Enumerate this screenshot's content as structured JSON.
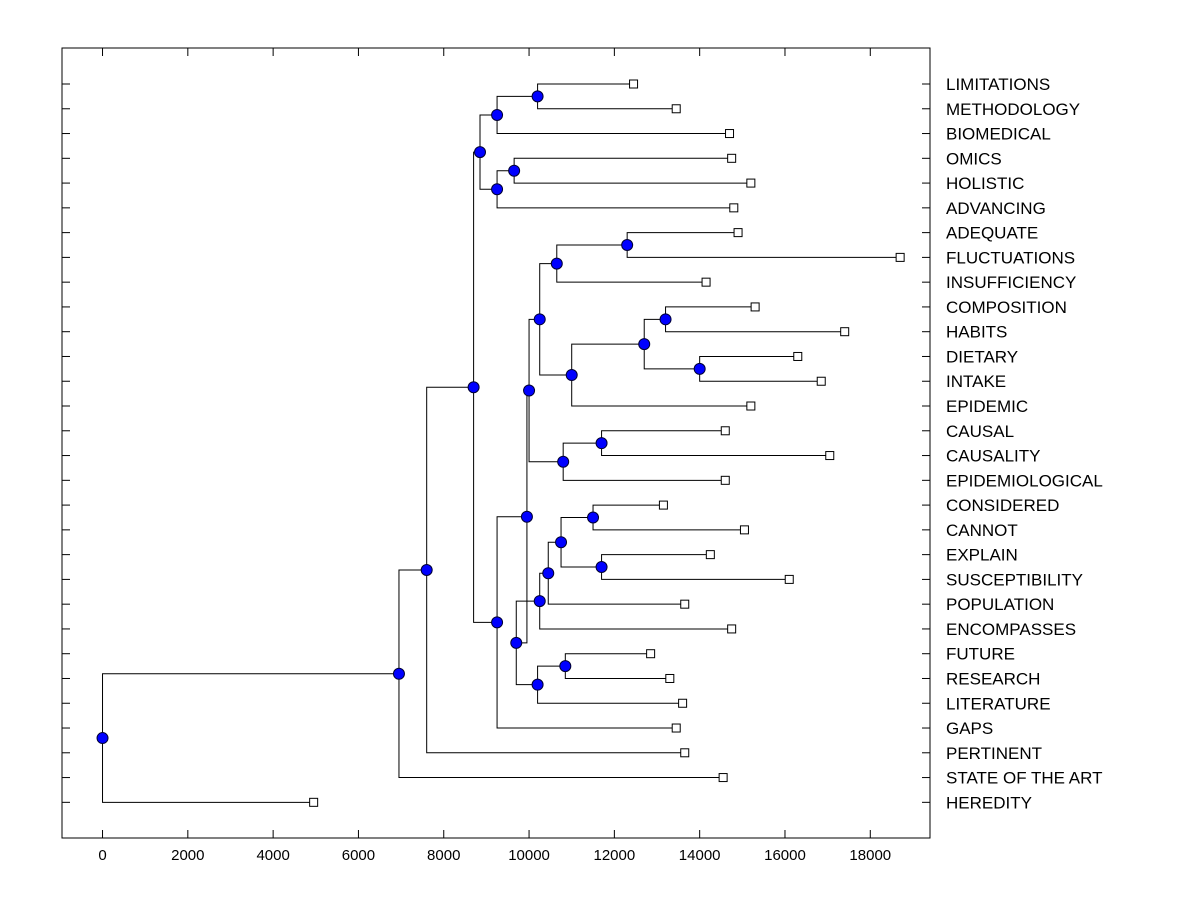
{
  "chart_data": {
    "type": "dendrogram",
    "title": "",
    "xlabel": "",
    "ylabel": "",
    "xlim": [
      -950,
      19400
    ],
    "xticks": [
      0,
      2000,
      4000,
      6000,
      8000,
      10000,
      12000,
      14000,
      16000,
      18000
    ],
    "leaves": [
      {
        "id": "L0",
        "label": "LIMITATIONS",
        "x": 12450
      },
      {
        "id": "L1",
        "label": "METHODOLOGY",
        "x": 13450
      },
      {
        "id": "L2",
        "label": "BIOMEDICAL",
        "x": 14700
      },
      {
        "id": "L3",
        "label": "OMICS",
        "x": 14750
      },
      {
        "id": "L4",
        "label": "HOLISTIC",
        "x": 15200
      },
      {
        "id": "L5",
        "label": "ADVANCING",
        "x": 14800
      },
      {
        "id": "L6",
        "label": "ADEQUATE",
        "x": 14900
      },
      {
        "id": "L7",
        "label": "FLUCTUATIONS",
        "x": 18700
      },
      {
        "id": "L8",
        "label": "INSUFFICIENCY",
        "x": 14150
      },
      {
        "id": "L9",
        "label": "COMPOSITION",
        "x": 15300
      },
      {
        "id": "L10",
        "label": "HABITS",
        "x": 17400
      },
      {
        "id": "L11",
        "label": "DIETARY",
        "x": 16300
      },
      {
        "id": "L12",
        "label": "INTAKE",
        "x": 16850
      },
      {
        "id": "L13",
        "label": "EPIDEMIC",
        "x": 15200
      },
      {
        "id": "L14",
        "label": "CAUSAL",
        "x": 14600
      },
      {
        "id": "L15",
        "label": "CAUSALITY",
        "x": 17050
      },
      {
        "id": "L16",
        "label": "EPIDEMIOLOGICAL",
        "x": 14600
      },
      {
        "id": "L17",
        "label": "CONSIDERED",
        "x": 13150
      },
      {
        "id": "L18",
        "label": "CANNOT",
        "x": 15050
      },
      {
        "id": "L19",
        "label": "EXPLAIN",
        "x": 14250
      },
      {
        "id": "L20",
        "label": "SUSCEPTIBILITY",
        "x": 16100
      },
      {
        "id": "L21",
        "label": "POPULATION",
        "x": 13650
      },
      {
        "id": "L22",
        "label": "ENCOMPASSES",
        "x": 14750
      },
      {
        "id": "L23",
        "label": "FUTURE",
        "x": 12850
      },
      {
        "id": "L24",
        "label": "RESEARCH",
        "x": 13300
      },
      {
        "id": "L25",
        "label": "LITERATURE",
        "x": 13600
      },
      {
        "id": "L26",
        "label": "GAPS",
        "x": 13450
      },
      {
        "id": "L27",
        "label": "PERTINENT",
        "x": 13650
      },
      {
        "id": "L28",
        "label": "STATE OF THE ART",
        "x": 14550
      },
      {
        "id": "L29",
        "label": "HEREDITY",
        "x": 4950
      }
    ],
    "nodes": [
      {
        "id": "N1",
        "x": 10200,
        "children": [
          "L0",
          "L1"
        ]
      },
      {
        "id": "N2",
        "x": 9250,
        "children": [
          "N1",
          "L2"
        ]
      },
      {
        "id": "N3",
        "x": 9650,
        "children": [
          "L3",
          "L4"
        ]
      },
      {
        "id": "N4",
        "x": 9250,
        "children": [
          "N3",
          "L5"
        ]
      },
      {
        "id": "N5",
        "x": 8850,
        "children": [
          "N2",
          "N4"
        ]
      },
      {
        "id": "N6",
        "x": 12300,
        "children": [
          "L6",
          "L7"
        ]
      },
      {
        "id": "N7",
        "x": 10650,
        "children": [
          "N6",
          "L8"
        ]
      },
      {
        "id": "N8",
        "x": 13200,
        "children": [
          "L9",
          "L10"
        ]
      },
      {
        "id": "N9",
        "x": 14000,
        "children": [
          "L11",
          "L12"
        ]
      },
      {
        "id": "N10",
        "x": 12700,
        "children": [
          "N8",
          "N9"
        ]
      },
      {
        "id": "N11",
        "x": 11000,
        "children": [
          "N10",
          "L13"
        ]
      },
      {
        "id": "N12",
        "x": 10250,
        "children": [
          "N7",
          "N11"
        ]
      },
      {
        "id": "N13",
        "x": 11700,
        "children": [
          "L14",
          "L15"
        ]
      },
      {
        "id": "N14",
        "x": 10800,
        "children": [
          "N13",
          "L16"
        ]
      },
      {
        "id": "N15",
        "x": 10000,
        "children": [
          "N12",
          "N14"
        ]
      },
      {
        "id": "N16",
        "x": 11500,
        "children": [
          "L17",
          "L18"
        ]
      },
      {
        "id": "N17",
        "x": 11700,
        "children": [
          "L19",
          "L20"
        ]
      },
      {
        "id": "N18",
        "x": 10750,
        "children": [
          "N16",
          "N17"
        ]
      },
      {
        "id": "N19",
        "x": 10450,
        "children": [
          "N18",
          "L21"
        ]
      },
      {
        "id": "N20",
        "x": 10250,
        "children": [
          "N19",
          "L22"
        ]
      },
      {
        "id": "N21",
        "x": 10850,
        "children": [
          "L23",
          "L24"
        ]
      },
      {
        "id": "N22",
        "x": 10200,
        "children": [
          "N21",
          "L25"
        ]
      },
      {
        "id": "N23",
        "x": 9700,
        "children": [
          "N20",
          "N22"
        ]
      },
      {
        "id": "N24",
        "x": 9950,
        "children": [
          "N15",
          "N23"
        ]
      },
      {
        "id": "N25",
        "x": 9250,
        "children": [
          "N24",
          "L26"
        ]
      },
      {
        "id": "N26",
        "x": 8700,
        "children": [
          "N5",
          "N25"
        ]
      },
      {
        "id": "N27",
        "x": 7600,
        "children": [
          "N26",
          "L27"
        ]
      },
      {
        "id": "N28",
        "x": 6950,
        "children": [
          "N27",
          "L28"
        ]
      },
      {
        "id": "N29",
        "x": 0,
        "children": [
          "N28",
          "L29"
        ]
      }
    ]
  },
  "colors": {
    "node_fill": "#0000ff",
    "node_stroke": "#000033",
    "leaf_fill": "#ffffff",
    "line": "#000000",
    "frame": "#000000"
  }
}
